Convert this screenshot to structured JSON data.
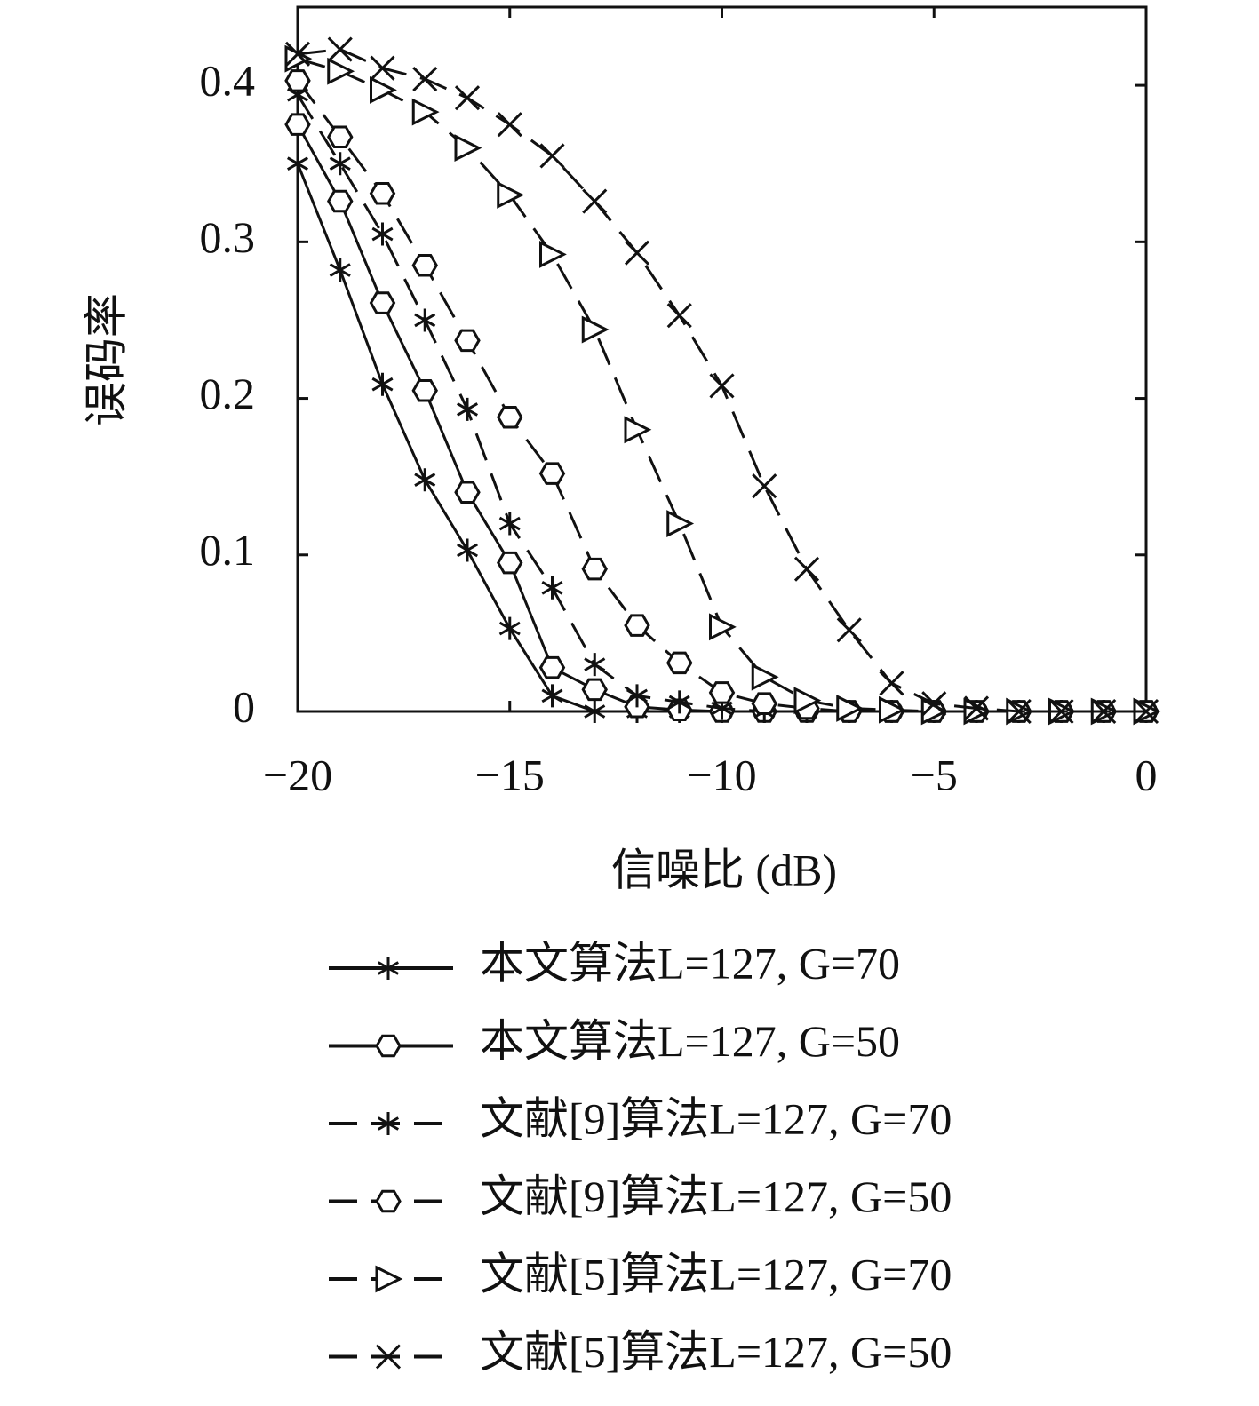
{
  "chart_data": {
    "type": "line",
    "x_label": "信噪比 (dB)",
    "y_label": "误码率",
    "x": [
      -20,
      -19,
      -18,
      -17,
      -16,
      -15,
      -14,
      -13,
      -12,
      -11,
      -10,
      -9,
      -8,
      -7,
      -6,
      -5,
      -4,
      -3,
      -2,
      -1,
      0
    ],
    "xlim": [
      -20,
      0
    ],
    "xticks": [
      {
        "value": -20,
        "label": "−20"
      },
      {
        "value": -15,
        "label": "−15"
      },
      {
        "value": -10,
        "label": "−10"
      },
      {
        "value": -5,
        "label": "−5"
      },
      0
    ],
    "ylim": [
      0,
      0.45
    ],
    "yticks": [
      0,
      0.1,
      0.2,
      0.3,
      0.4
    ],
    "series": [
      {
        "name": "本文算法L=127, G=70",
        "color": "#111111",
        "dash": false,
        "marker": "asterisk",
        "values": [
          0.35,
          0.282,
          0.209,
          0.148,
          0.103,
          0.053,
          0.01,
          0,
          0,
          0,
          0,
          0,
          0,
          0,
          0,
          0,
          0,
          0,
          0,
          0,
          0
        ]
      },
      {
        "name": "本文算法L=127, G=50",
        "color": "#111111",
        "dash": false,
        "marker": "hexagon",
        "values": [
          0.375,
          0.326,
          0.261,
          0.205,
          0.14,
          0.095,
          0.028,
          0.014,
          0.003,
          0.001,
          0,
          0,
          0,
          0,
          0,
          0,
          0,
          0,
          0,
          0,
          0
        ]
      },
      {
        "name": "文献[9]算法L=127, G=70",
        "color": "#111111",
        "dash": true,
        "marker": "asterisk",
        "values": [
          0.394,
          0.35,
          0.305,
          0.25,
          0.193,
          0.12,
          0.079,
          0.03,
          0.01,
          0.006,
          0.002,
          0,
          0,
          0,
          0,
          0,
          0,
          0,
          0,
          0,
          0
        ]
      },
      {
        "name": "文献[9]算法L=127, G=50",
        "color": "#111111",
        "dash": true,
        "marker": "hexagon",
        "values": [
          0.403,
          0.367,
          0.331,
          0.285,
          0.237,
          0.188,
          0.152,
          0.091,
          0.055,
          0.031,
          0.012,
          0.005,
          0.002,
          0,
          0,
          0,
          0,
          0,
          0,
          0,
          0
        ]
      },
      {
        "name": "文献[5]算法L=127, G=70",
        "color": "#111111",
        "dash": true,
        "marker": "triangle-right",
        "values": [
          0.417,
          0.409,
          0.397,
          0.383,
          0.36,
          0.33,
          0.292,
          0.244,
          0.18,
          0.12,
          0.054,
          0.022,
          0.007,
          0.002,
          0.001,
          0,
          0,
          0,
          0,
          0,
          0
        ]
      },
      {
        "name": "文献[5]算法L=127, G=50",
        "color": "#111111",
        "dash": true,
        "marker": "x",
        "values": [
          0.42,
          0.423,
          0.411,
          0.404,
          0.392,
          0.375,
          0.355,
          0.326,
          0.293,
          0.253,
          0.208,
          0.144,
          0.091,
          0.052,
          0.018,
          0.005,
          0.002,
          0,
          0,
          0,
          0
        ]
      }
    ]
  }
}
